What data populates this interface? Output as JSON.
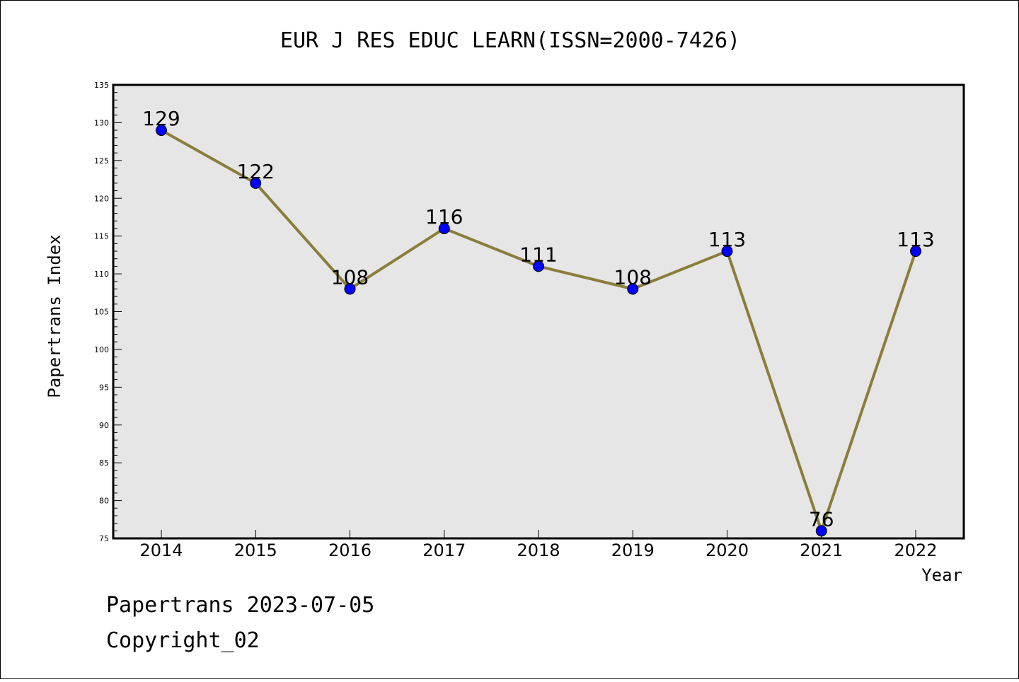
{
  "chart_data": {
    "type": "line",
    "title": "EUR J RES EDUC LEARN(ISSN=2000-7426)",
    "xlabel": "Year",
    "ylabel": "Papertrans Index",
    "categories": [
      "2014",
      "2015",
      "2016",
      "2017",
      "2018",
      "2019",
      "2020",
      "2021",
      "2022"
    ],
    "series": [
      {
        "values": [
          129,
          122,
          108,
          116,
          111,
          108,
          113,
          76,
          113
        ]
      }
    ],
    "ylim": [
      75,
      135
    ],
    "yticks": [
      75,
      80,
      85,
      90,
      95,
      100,
      105,
      110,
      115,
      120,
      125,
      130,
      135
    ],
    "grid": false,
    "plot_background": "#e6e6e6",
    "line_color": "#8b7d3a",
    "marker_color": "#0000ff"
  },
  "footer": {
    "line1": "Papertrans 2023-07-05",
    "line2": "Copyright_02"
  }
}
